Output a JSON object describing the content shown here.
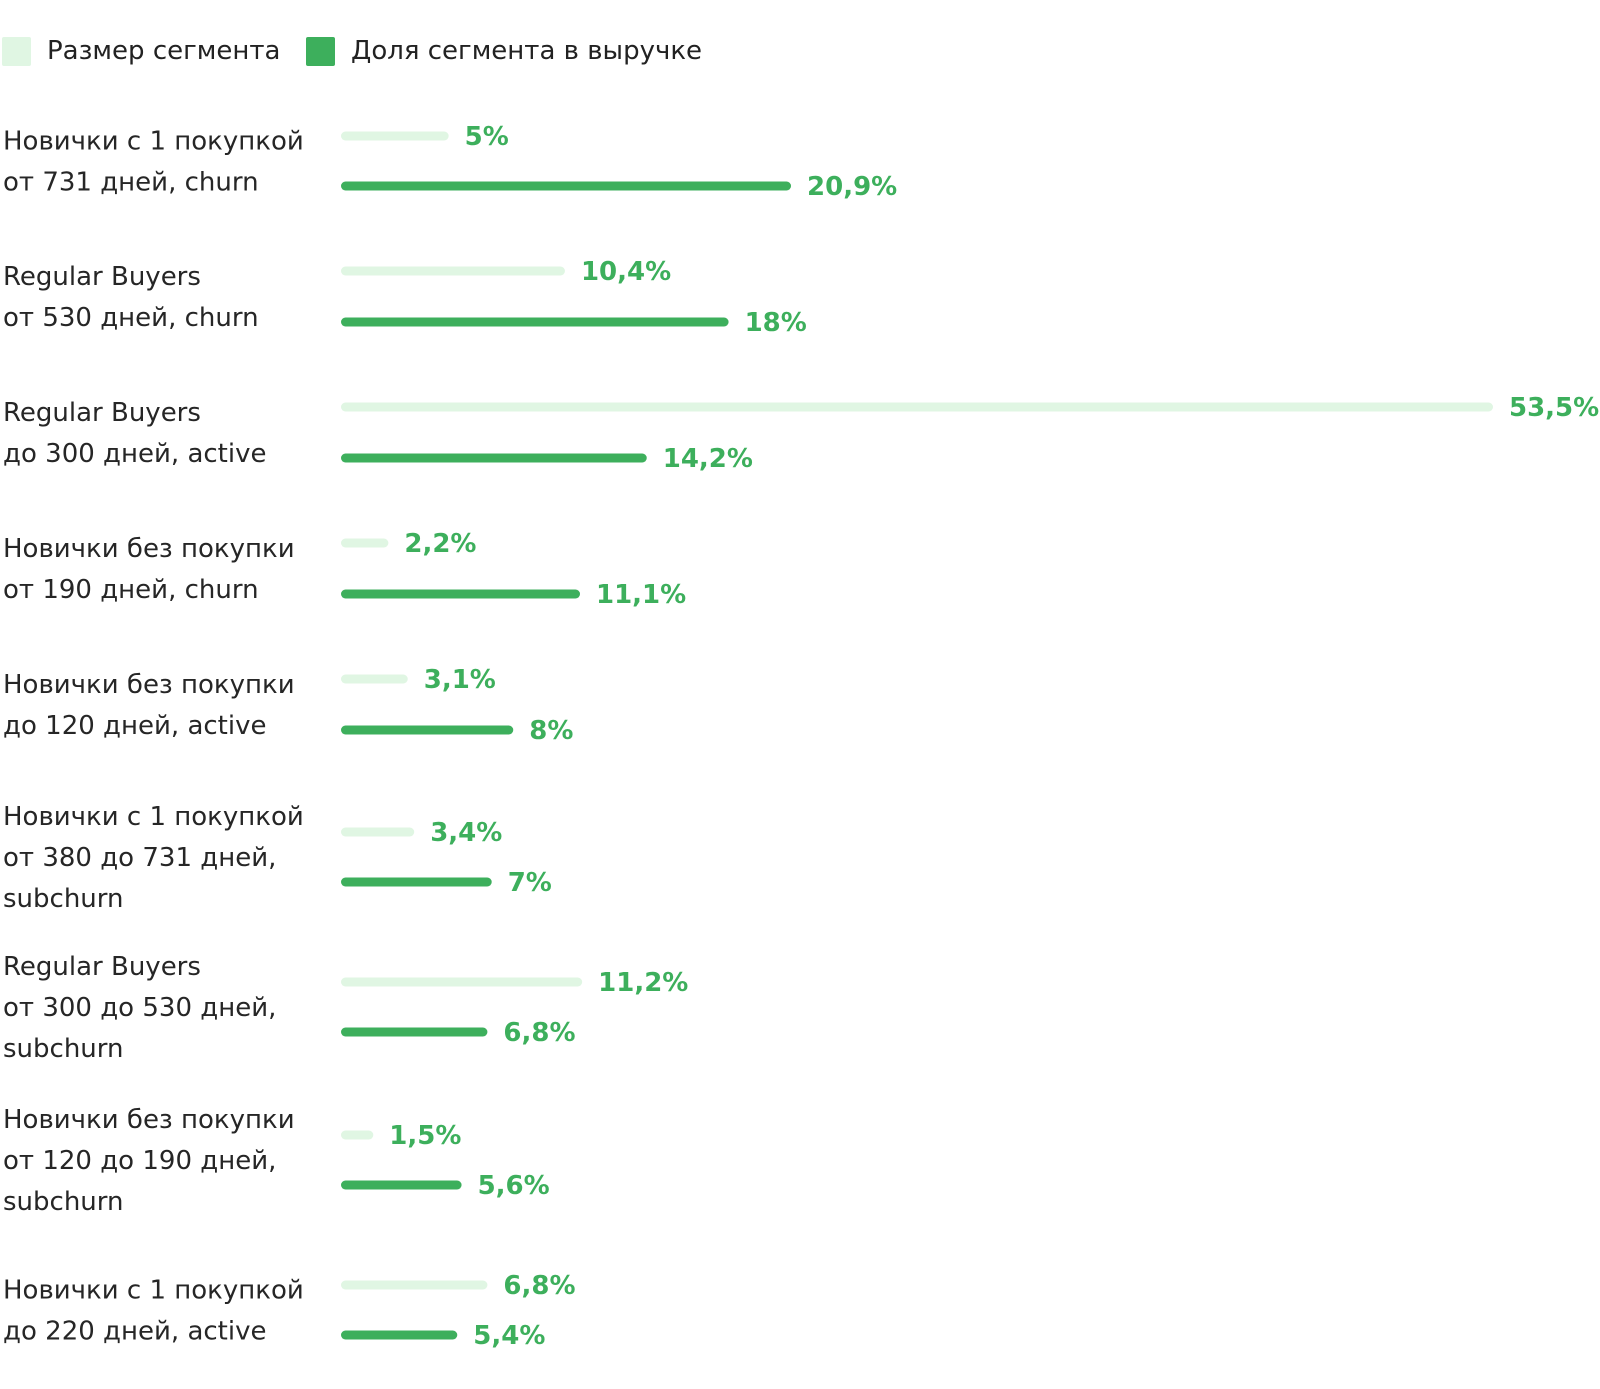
{
  "colors": {
    "size_bar": "#e0f6e3",
    "revenue_bar": "#3daf5c",
    "value_text": "#3daf5c",
    "label_text": "#262626"
  },
  "legend": {
    "size_label": "Размер сегмента",
    "revenue_label": "Доля сегмента в выручке"
  },
  "chart_data": {
    "type": "bar",
    "orientation": "horizontal",
    "grid": false,
    "legend_position": "top-left",
    "categories": [
      [
        "Новички с 1 покупкой",
        "от 731 дней, churn"
      ],
      [
        "Regular Buyers",
        "от 530 дней, churn"
      ],
      [
        "Regular Buyers",
        "до 300 дней, active"
      ],
      [
        "Новички без покупки",
        "от 190 дней, churn"
      ],
      [
        "Новички без покупки",
        "до 120 дней, active"
      ],
      [
        "Новички с 1 покупкой",
        "от 380 до 731 дней,",
        "subchurn"
      ],
      [
        "Regular Buyers",
        "от 300 до 530 дней,",
        "subchurn"
      ],
      [
        "Новички без покупки",
        "от 120 до 190 дней,",
        "subchurn"
      ],
      [
        "Новички с 1 покупкой",
        "до 220 дней, active"
      ]
    ],
    "series": [
      {
        "name": "Размер сегмента",
        "values": [
          5,
          10.4,
          53.5,
          2.2,
          3.1,
          3.4,
          11.2,
          1.5,
          6.8
        ],
        "value_labels": [
          "5%",
          "10,4%",
          "53,5%",
          "2,2%",
          "3,1%",
          "3,4%",
          "11,2%",
          "1,5%",
          "6,8%"
        ]
      },
      {
        "name": "Доля сегмента в выручке",
        "values": [
          20.9,
          18,
          14.2,
          11.1,
          8,
          7,
          6.8,
          5.6,
          5.4
        ],
        "value_labels": [
          "20,9%",
          "18%",
          "14,2%",
          "11,1%",
          "8%",
          "7%",
          "6,8%",
          "5,6%",
          "5,4%"
        ]
      }
    ],
    "xlim": [
      0,
      53.5
    ]
  }
}
